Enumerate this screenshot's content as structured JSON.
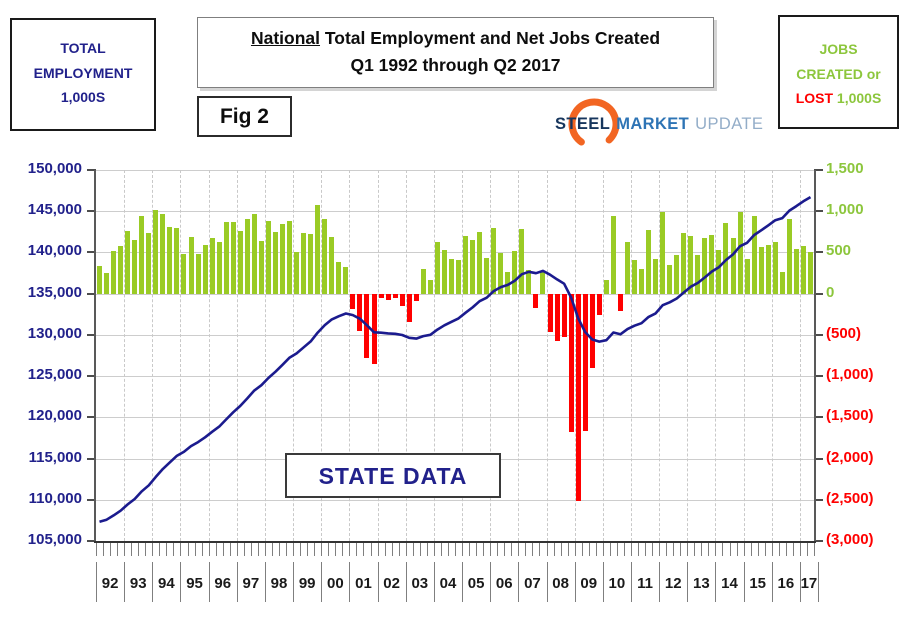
{
  "header": {
    "left_box_lines": [
      "TOTAL",
      "EMPLOYMENT",
      "1,000S"
    ],
    "title_underlined": "National",
    "title_rest": " Total Employment and Net Jobs Created",
    "title_line2": "Q1 1992 through Q2 2017",
    "fig_label": "Fig 2",
    "logo": {
      "word1": "STEEL",
      "word2": "MARKET",
      "word3": "UPDATE"
    },
    "right_box": {
      "line1": "JOBS",
      "line2": "CREATED or",
      "lost_word": "LOST",
      "units_word": "1,000S"
    }
  },
  "annotation_label": "STATE DATA",
  "colors": {
    "bar_positive": "#9ACB25",
    "bar_negative": "#FF0000",
    "employment_line": "#1B1B8E",
    "left_axis_text": "#21218B",
    "right_axis_positive": "#8CC63C",
    "right_axis_negative": "#FF0000",
    "grid": "#CDCDCD",
    "logo_orange": "#F26522"
  },
  "chart_data": {
    "type": "bar+line",
    "title": "National Total Employment and Net Jobs Created, Q1 1992 through Q2 2017",
    "x_start": "1992Q1",
    "x_end": "2017Q2",
    "quarters": 102,
    "x_year_labels": [
      "92",
      "93",
      "94",
      "95",
      "96",
      "97",
      "98",
      "99",
      "00",
      "01",
      "02",
      "03",
      "04",
      "05",
      "06",
      "07",
      "08",
      "09",
      "10",
      "11",
      "12",
      "13",
      "14",
      "15",
      "16",
      "17"
    ],
    "left_axis": {
      "label": "Total Employment, 1,000s",
      "min": 105000,
      "max": 150000,
      "step": 5000,
      "tick_labels": [
        "150,000",
        "145,000",
        "140,000",
        "135,000",
        "130,000",
        "125,000",
        "120,000",
        "115,000",
        "110,000",
        "105,000"
      ]
    },
    "right_axis": {
      "label": "Jobs Created or Lost, 1,000s",
      "min": -3000,
      "max": 1500,
      "step": 500,
      "tick_labels": [
        "1,500",
        "1,000",
        "500",
        "0",
        "(500)",
        "(1,000)",
        "(1,500)",
        "(2,000)",
        "(2,500)",
        "(3,000)"
      ],
      "green_label_count": 4
    },
    "bar_series": {
      "name": "Net Jobs Created or Lost (1,000s)",
      "values": [
        340,
        245,
        520,
        575,
        765,
        645,
        940,
        730,
        1010,
        970,
        805,
        800,
        480,
        685,
        480,
        585,
        670,
        630,
        875,
        875,
        760,
        910,
        970,
        635,
        885,
        745,
        840,
        880,
        500,
        740,
        720,
        1070,
        910,
        690,
        390,
        320,
        -185,
        -455,
        -785,
        -850,
        -50,
        -80,
        -50,
        -150,
        -340,
        -90,
        295,
        160,
        630,
        525,
        420,
        410,
        700,
        645,
        745,
        430,
        795,
        490,
        260,
        515,
        785,
        290,
        -170,
        280,
        -460,
        -570,
        -520,
        -1680,
        -2520,
        -1670,
        -900,
        -260,
        170,
        940,
        -215,
        630,
        405,
        305,
        770,
        425,
        995,
        345,
        465,
        730,
        695,
        465,
        670,
        710,
        535,
        860,
        680,
        995,
        415,
        945,
        565,
        595,
        630,
        265,
        910,
        545,
        575,
        510
      ]
    },
    "line_series": {
      "name": "Total Employment (1,000s)",
      "values": [
        107340,
        107585,
        108105,
        108680,
        109445,
        110090,
        111030,
        111760,
        112770,
        113740,
        114545,
        115345,
        115825,
        116510,
        116990,
        117575,
        118245,
        118875,
        119750,
        120625,
        121385,
        122295,
        123265,
        123900,
        124785,
        125530,
        126370,
        127250,
        127750,
        128490,
        129210,
        130280,
        131190,
        131880,
        132270,
        132590,
        132405,
        131950,
        131165,
        130315,
        130265,
        130185,
        130135,
        129985,
        129645,
        129555,
        129850,
        130010,
        130640,
        131165,
        131585,
        131995,
        132695,
        133340,
        134085,
        134515,
        135310,
        135800,
        136060,
        136575,
        137360,
        137650,
        137480,
        137760,
        137300,
        136730,
        136210,
        134530,
        132010,
        130340,
        129440,
        129180,
        129350,
        130290,
        130075,
        130705,
        131110,
        131415,
        132185,
        132610,
        133605,
        133950,
        134415,
        135145,
        135840,
        136305,
        136975,
        137685,
        138220,
        139080,
        139760,
        140755,
        141170,
        142115,
        142680,
        143275,
        143905,
        144170,
        145080,
        145625,
        146200,
        146710
      ]
    }
  }
}
